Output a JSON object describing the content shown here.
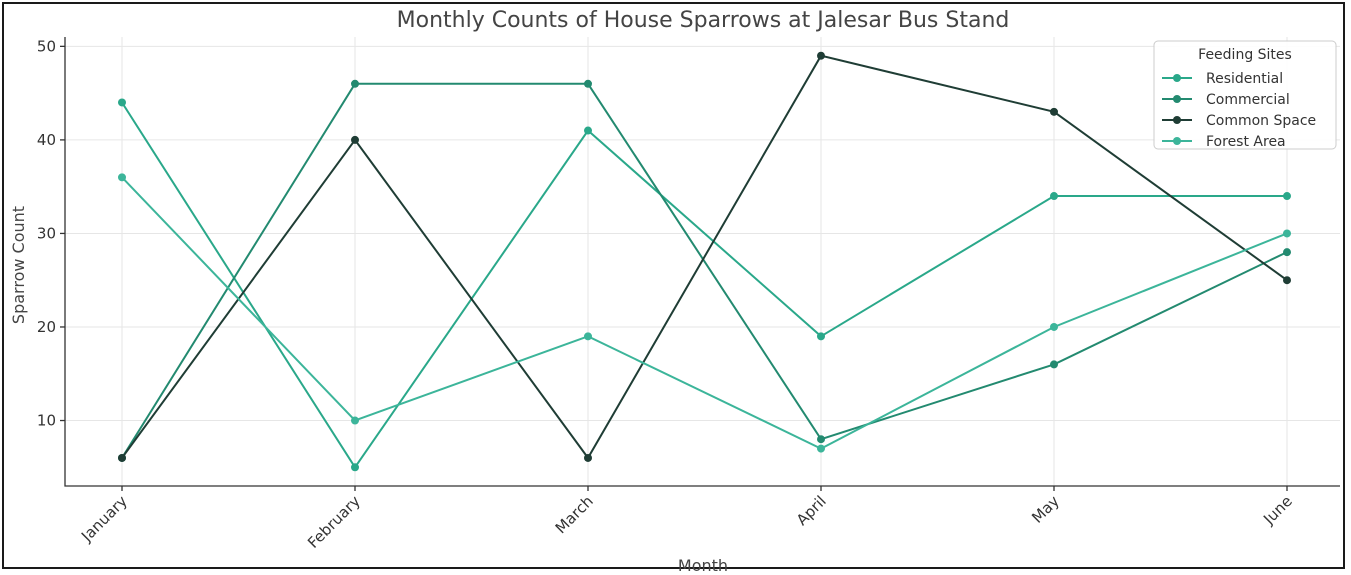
{
  "chart_data": {
    "type": "line",
    "title": "Monthly Counts of House Sparrows at Jalesar Bus Stand",
    "xlabel": "Month",
    "ylabel": "Sparrow Count",
    "categories": [
      "January",
      "February",
      "March",
      "April",
      "May",
      "June"
    ],
    "ylim": [
      3,
      51
    ],
    "yticks": [
      10,
      20,
      30,
      40,
      50
    ],
    "grid": true,
    "legend": {
      "title": "Feeding Sites",
      "position": "top-right"
    },
    "series": [
      {
        "name": "Residential",
        "color": "#2aa88a",
        "values": [
          44,
          5,
          41,
          19,
          34,
          34
        ]
      },
      {
        "name": "Commercial",
        "color": "#238a70",
        "values": [
          6,
          46,
          46,
          8,
          16,
          28
        ]
      },
      {
        "name": "Common Space",
        "color": "#1f3d35",
        "values": [
          6,
          40,
          6,
          49,
          43,
          25
        ]
      },
      {
        "name": "Forest Area",
        "color": "#3cb59a",
        "values": [
          36,
          10,
          19,
          7,
          20,
          30
        ]
      }
    ]
  }
}
